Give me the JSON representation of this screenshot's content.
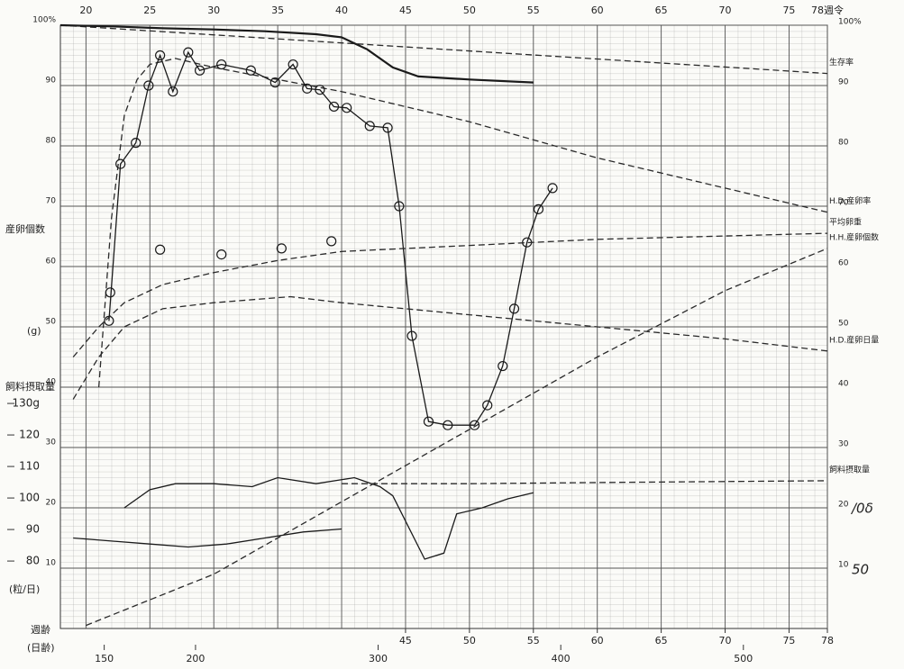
{
  "chart_data": {
    "type": "line",
    "xlim": [
      18,
      78
    ],
    "ylim": [
      0,
      100
    ],
    "xticks": [
      20,
      25,
      30,
      35,
      40,
      45,
      50,
      55,
      60,
      65,
      70,
      75,
      {
        "value": 78,
        "label": "78週令"
      }
    ],
    "bottom_xticks": [
      45,
      50,
      55,
      60,
      65,
      70,
      75,
      78
    ],
    "yticks": [
      10,
      20,
      30,
      40,
      50,
      60,
      70,
      80,
      90,
      {
        "value": 100,
        "label": "100%"
      }
    ],
    "y2lim": [
      58.6,
      250
    ],
    "y2ticks": [
      {
        "value": 130,
        "label": "130g"
      },
      120,
      110,
      100,
      90,
      80
    ],
    "day_lim": [
      126,
      546
    ],
    "day_ticks": [
      150,
      200,
      300,
      400,
      500
    ],
    "grid": true,
    "left_labels": [
      "産卵個数",
      "(g)",
      "飼料摂取量",
      "(粒/日)"
    ],
    "bottom_labels": [
      "週齢",
      "(日齢)"
    ],
    "annotations": [
      "/0δ",
      "50"
    ],
    "series": [
      {
        "name": "生存率",
        "color": "#2a2a2a",
        "style": "dashed",
        "x": [
          18,
          78
        ],
        "values": [
          100,
          92
        ]
      },
      {
        "color": "#1a1a1a",
        "style": "solid",
        "width": 2.2,
        "x": [
          18,
          22,
          26,
          30,
          34,
          38,
          40,
          41,
          42,
          43,
          44,
          46,
          50,
          55
        ],
        "values": [
          100,
          99.8,
          99.5,
          99.3,
          99,
          98.5,
          98,
          97,
          96,
          94.5,
          93,
          91.5,
          91,
          90.5
        ]
      },
      {
        "name": "H.D.産卵率",
        "color": "#2a2a2a",
        "style": "dashed",
        "x": [
          21,
          22,
          23,
          24,
          25,
          27,
          30,
          40,
          50,
          60,
          70,
          78
        ],
        "values": [
          40,
          68,
          85,
          91,
          93.5,
          94.5,
          93,
          89,
          84,
          78,
          73,
          69
        ]
      },
      {
        "color": "#1a1a1a",
        "style": "solid",
        "marker": "circle",
        "x": [
          21.8,
          22.7,
          23.9,
          24.9,
          25.8,
          26.8,
          28,
          28.9,
          30.6,
          32.9,
          34.8,
          36.2,
          37.3,
          38.3,
          39.4,
          40.4,
          42.2,
          43.6,
          44.5,
          45.5,
          46.8,
          48.3,
          50.4,
          51.4,
          52.6,
          53.5,
          54.5,
          55.4,
          56.5
        ],
        "values": [
          51,
          77,
          80.5,
          90,
          95,
          89,
          95.5,
          92.5,
          93.5,
          92.5,
          90.5,
          93.5,
          89.5,
          89.3,
          86.5,
          86.3,
          83.3,
          83,
          70,
          48.5,
          34.3,
          33.7,
          33.7,
          37,
          43.5,
          53,
          64,
          69.5,
          73
        ]
      },
      {
        "name": "平均卵重",
        "color": "#2a2a2a",
        "style": "dashed",
        "x": [
          19,
          21,
          23,
          26,
          30,
          35,
          40,
          50,
          60,
          78
        ],
        "values": [
          45,
          50,
          54,
          57,
          59,
          61,
          62.5,
          63.5,
          64.5,
          65.5
        ]
      },
      {
        "color": "#1a1a1a",
        "style": "none",
        "marker": "circle",
        "x": [
          21.9,
          25.8,
          30.6,
          35.3,
          39.2
        ],
        "values": [
          55.7,
          62.8,
          62,
          63,
          64.2
        ]
      },
      {
        "name": "H.H.産卵個数",
        "color": "#2a2a2a",
        "style": "dashed",
        "x": [
          20,
          30,
          40,
          50,
          60,
          70,
          78
        ],
        "values": [
          0.5,
          9,
          21,
          33,
          45,
          56,
          63
        ]
      },
      {
        "name": "H.D.産卵日量",
        "color": "#2a2a2a",
        "style": "dashed",
        "x": [
          19,
          21,
          23,
          26,
          30,
          36,
          40,
          50,
          60,
          70,
          78
        ],
        "values": [
          38,
          45,
          50,
          53,
          54,
          55,
          54,
          52,
          50,
          48,
          46
        ]
      },
      {
        "color": "#1a1a1a",
        "style": "solid",
        "x": [
          23,
          25,
          27,
          30,
          33,
          35,
          38,
          41,
          43,
          44,
          46.5,
          48,
          49,
          51,
          53,
          55
        ],
        "values": [
          20,
          23,
          24,
          24,
          23.5,
          25,
          24,
          25,
          23.5,
          22,
          11.5,
          12.5,
          19,
          20,
          21.5,
          22.5
        ]
      },
      {
        "name": "飼料摂取量",
        "color": "#2a2a2a",
        "style": "dashed",
        "x": [
          40,
          50,
          60,
          78
        ],
        "values": [
          24,
          24,
          24.2,
          24.5
        ]
      },
      {
        "color": "#1a1a1a",
        "style": "solid",
        "x": [
          19,
          22,
          25,
          28,
          31,
          34,
          37,
          40
        ],
        "values": [
          15,
          14.5,
          14,
          13.5,
          14,
          15,
          16,
          16.5
        ]
      }
    ]
  }
}
